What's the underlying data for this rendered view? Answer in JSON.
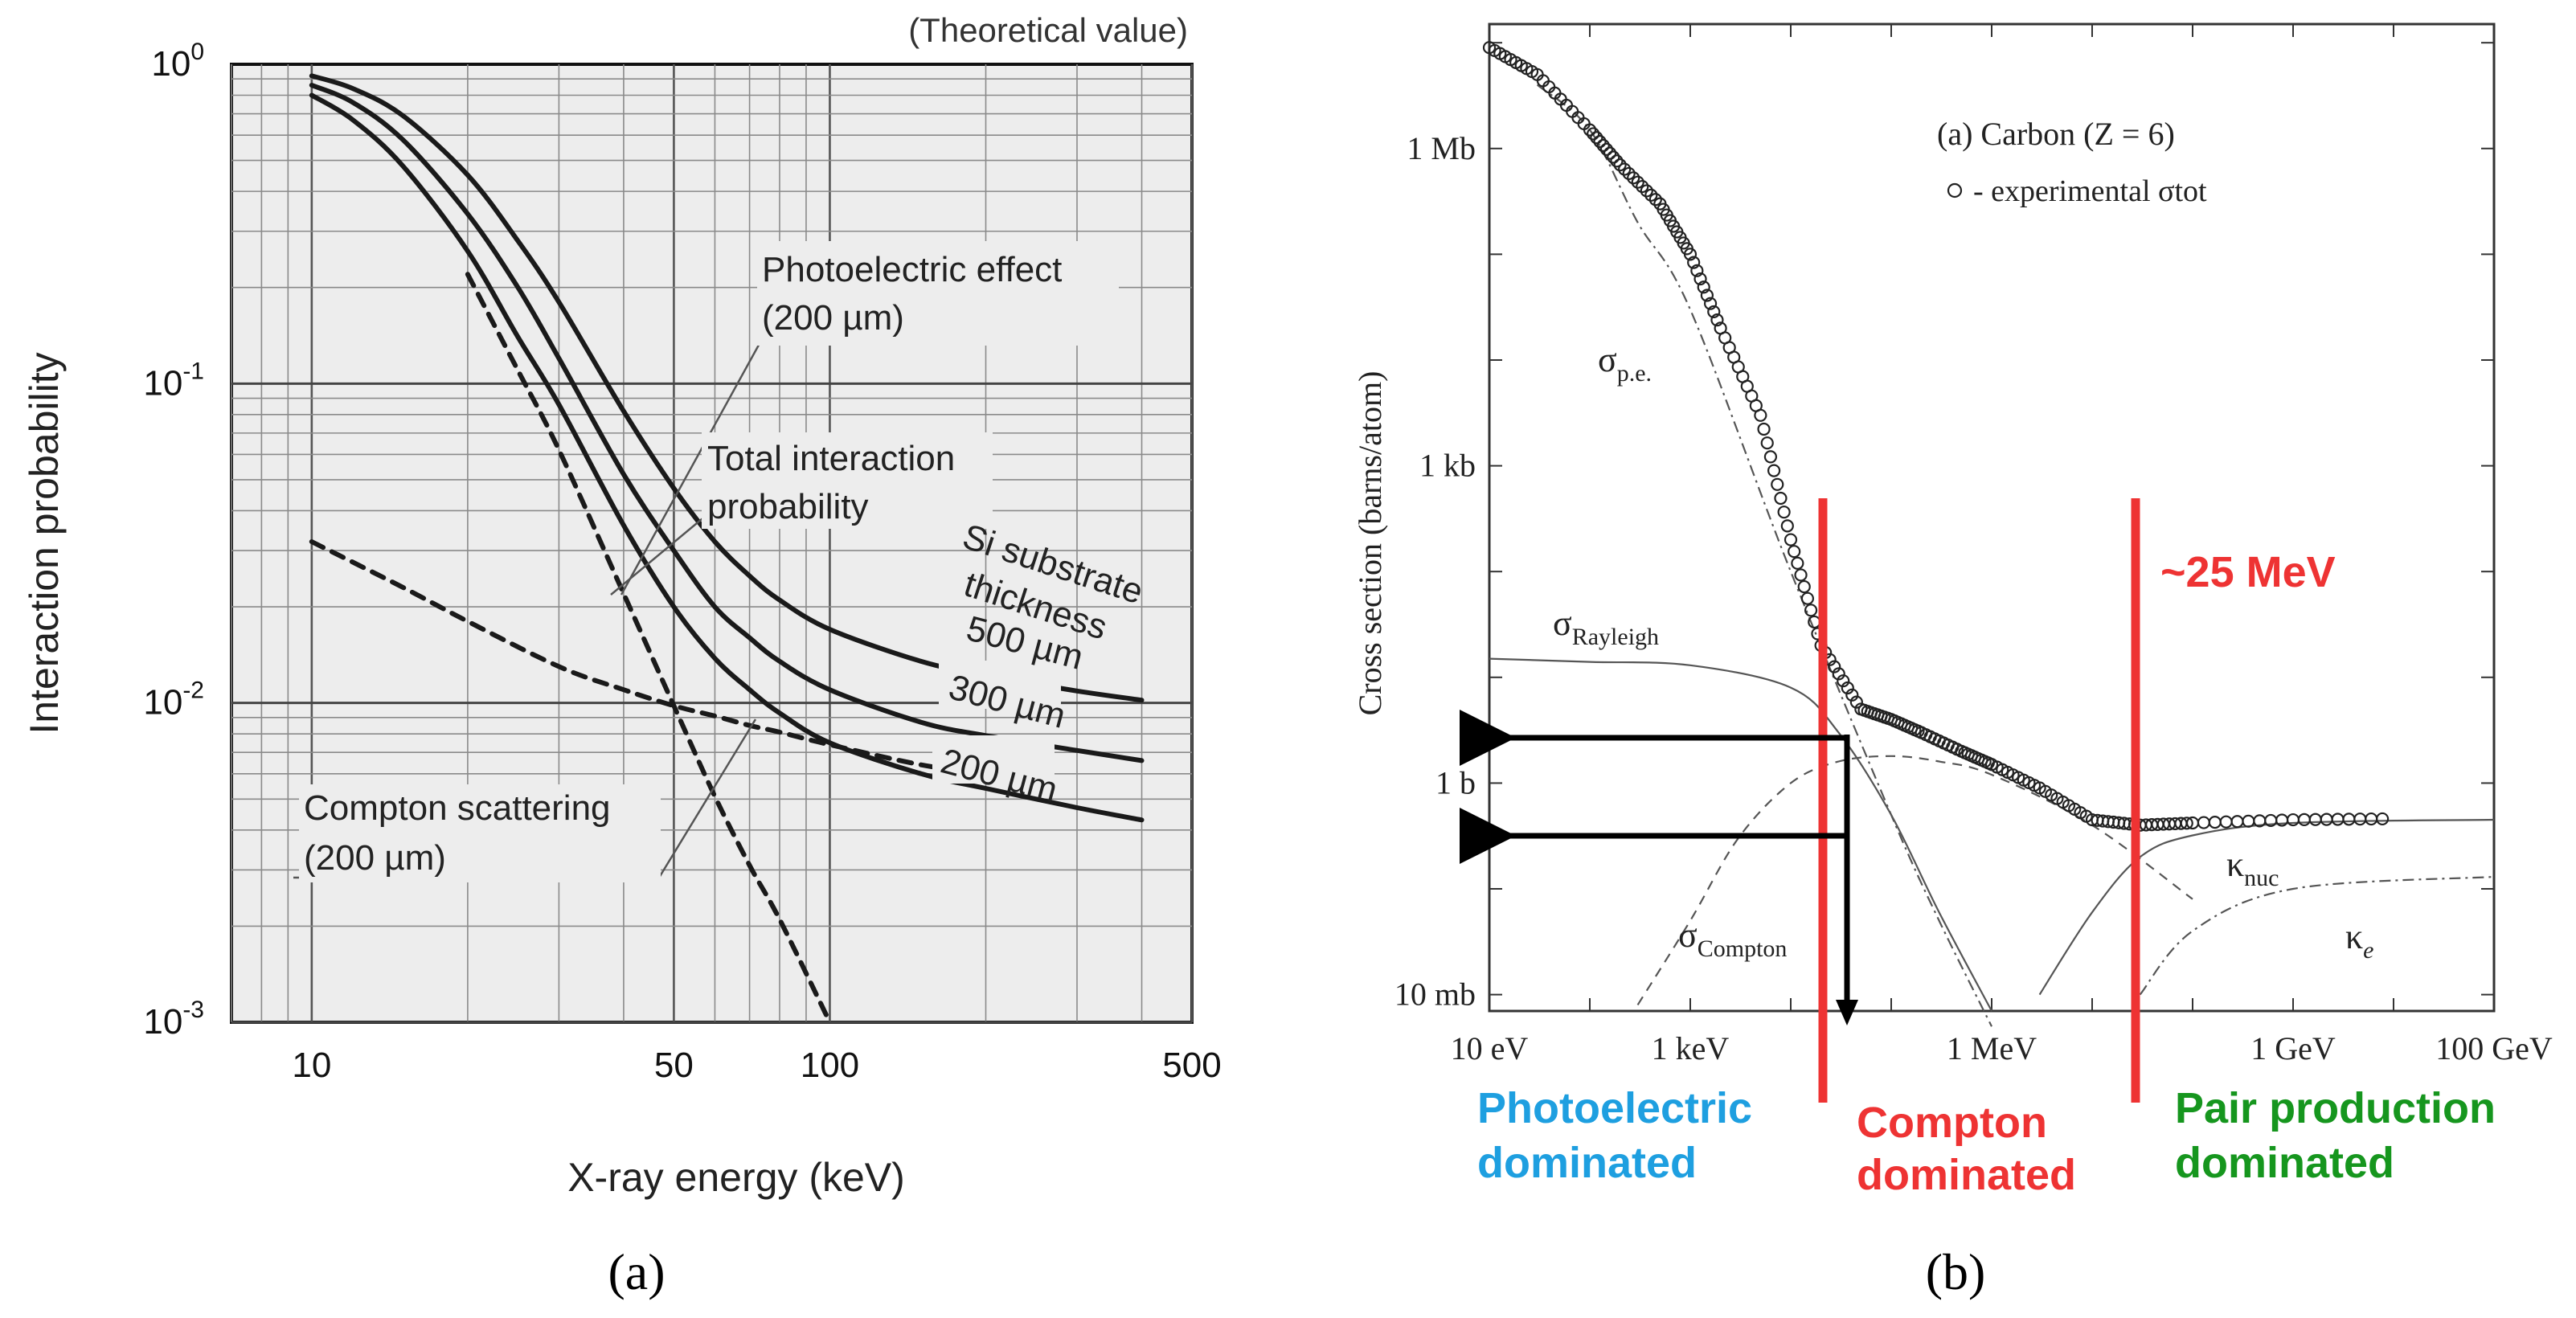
{
  "figure_labels": {
    "a": "(a)",
    "b": "(b)"
  },
  "colors": {
    "curve": "#1a1a1a",
    "grid": "#8a8a8a",
    "panel_bg": "#ededed",
    "red": "#ee3333",
    "blue": "#1e9fe0",
    "green": "#16961e",
    "thin": "#555555"
  },
  "chart_data": [
    {
      "type": "line",
      "panel": "a",
      "title": "(Theoretical value)",
      "xlabel": "X-ray energy (keV)",
      "ylabel": "Interaction probability",
      "xscale": "log",
      "yscale": "log",
      "xlim": [
        7,
        500
      ],
      "ylim": [
        0.001,
        1
      ],
      "grid": true,
      "x_ticks": [
        {
          "value": 10,
          "label": "10"
        },
        {
          "value": 50,
          "label": "50"
        },
        {
          "value": 100,
          "label": "100"
        },
        {
          "value": 500,
          "label": "500"
        }
      ],
      "y_ticks": [
        {
          "value": 1,
          "base": "10",
          "exp": "0"
        },
        {
          "value": 0.1,
          "base": "10",
          "exp": "-1"
        },
        {
          "value": 0.01,
          "base": "10",
          "exp": "-2"
        },
        {
          "value": 0.001,
          "base": "10",
          "exp": "-3"
        }
      ],
      "series": [
        {
          "name": "Total interaction probability 500 µm",
          "style": "solid",
          "x": [
            10,
            12,
            15,
            20,
            25,
            30,
            40,
            50,
            60,
            70,
            80,
            100,
            150,
            200,
            300,
            400
          ],
          "y": [
            0.92,
            0.84,
            0.69,
            0.45,
            0.28,
            0.18,
            0.082,
            0.047,
            0.032,
            0.025,
            0.021,
            0.017,
            0.0135,
            0.0122,
            0.0109,
            0.0102
          ]
        },
        {
          "name": "Total interaction probability 300 µm",
          "style": "solid",
          "x": [
            10,
            12,
            15,
            20,
            25,
            30,
            40,
            50,
            60,
            70,
            80,
            100,
            150,
            200,
            300,
            400
          ],
          "y": [
            0.86,
            0.76,
            0.58,
            0.34,
            0.2,
            0.12,
            0.052,
            0.03,
            0.02,
            0.016,
            0.0135,
            0.011,
            0.0087,
            0.0079,
            0.0071,
            0.0066
          ]
        },
        {
          "name": "Total interaction probability 200 µm",
          "style": "solid",
          "x": [
            10,
            12,
            15,
            20,
            25,
            30,
            40,
            50,
            60,
            70,
            80,
            100,
            150,
            200,
            300,
            400
          ],
          "y": [
            0.8,
            0.67,
            0.48,
            0.26,
            0.14,
            0.086,
            0.036,
            0.02,
            0.0138,
            0.011,
            0.0093,
            0.0075,
            0.006,
            0.0054,
            0.0047,
            0.0043
          ]
        },
        {
          "name": "Photoelectric effect (200 µm)",
          "style": "dashed",
          "x": [
            20,
            25,
            30,
            40,
            50,
            60,
            70,
            80,
            100
          ],
          "y": [
            0.22,
            0.11,
            0.062,
            0.022,
            0.0098,
            0.0051,
            0.0031,
            0.0021,
            0.001
          ]
        },
        {
          "name": "Compton scattering (200 µm)",
          "style": "dashed",
          "x": [
            10,
            15,
            20,
            30,
            40,
            50,
            60,
            70,
            80,
            100,
            150,
            200
          ],
          "y": [
            0.032,
            0.023,
            0.018,
            0.013,
            0.011,
            0.0098,
            0.0091,
            0.0085,
            0.0081,
            0.0074,
            0.0064,
            0.006
          ]
        }
      ],
      "annotations": [
        {
          "lines": [
            "Photoelectric effect",
            "(200 µm)"
          ]
        },
        {
          "lines": [
            "Total interaction",
            "probability"
          ]
        },
        {
          "lines": [
            "Si substrate",
            "thickness"
          ]
        },
        {
          "label": "500 µm"
        },
        {
          "label": "300 µm"
        },
        {
          "label": "200 µm"
        },
        {
          "lines": [
            "Compton scattering",
            "(200 µm)"
          ]
        }
      ]
    },
    {
      "type": "line",
      "panel": "b",
      "title": "(a) Carbon (Z = 6)",
      "legend": "- experimental σtot",
      "ylabel": "Cross section  (barns/atom)",
      "xscale": "log",
      "yscale": "log",
      "xlim_eV": [
        10,
        100000000000.0
      ],
      "ylim_barns": [
        0.007,
        15000000
      ],
      "x_ticks": [
        {
          "value": 10,
          "label": "10 eV"
        },
        {
          "value": 1000,
          "label": "1 keV"
        },
        {
          "value": 1000000,
          "label": "1 MeV"
        },
        {
          "value": 1000000000,
          "label": "1 GeV"
        },
        {
          "value": 100000000000,
          "label": "100 GeV"
        }
      ],
      "y_ticks": [
        {
          "value": 1000000,
          "label": "1 Mb"
        },
        {
          "value": 1000,
          "label": "1 kb"
        },
        {
          "value": 1,
          "label": "1 b"
        },
        {
          "value": 0.01,
          "label": "10 mb"
        }
      ],
      "series": [
        {
          "name": "experimental σtot",
          "style": "circles",
          "x": [
            10,
            30,
            100,
            200,
            500,
            1000,
            2000,
            5000,
            10000,
            20000,
            50000,
            100000,
            200000,
            500000,
            1000000,
            3000000,
            10000000,
            30000000,
            100000000,
            1000000000,
            10000000000
          ],
          "y": [
            9000000,
            5000000,
            1500000,
            700000,
            300000,
            100000,
            20000,
            3000,
            200,
            20,
            5,
            4,
            3,
            2,
            1.5,
            0.9,
            0.45,
            0.4,
            0.42,
            0.45,
            0.46
          ]
        },
        {
          "name": "σp.e.",
          "style": "dashdot",
          "x": [
            30,
            100,
            300,
            1000,
            10000,
            100000,
            300000,
            1000000
          ],
          "y": [
            4000000,
            1500000,
            200000,
            30000,
            100,
            0.5,
            0.05,
            0.005
          ]
        },
        {
          "name": "σRayleigh",
          "style": "solid",
          "x": [
            10,
            100,
            1000,
            10000,
            30000,
            100000,
            300000,
            1000000
          ],
          "y": [
            15,
            14,
            13,
            8,
            3,
            0.5,
            0.06,
            0.007
          ]
        },
        {
          "name": "σCompton",
          "style": "dashed",
          "x": [
            300,
            1000,
            3000,
            10000,
            30000,
            100000,
            300000,
            1000000,
            10000000,
            100000000
          ],
          "y": [
            0.008,
            0.05,
            0.3,
            1,
            1.6,
            1.8,
            1.6,
            1.2,
            0.4,
            0.08
          ]
        },
        {
          "name": "κnuc",
          "style": "solid",
          "x": [
            3000000,
            10000000,
            30000000,
            100000000,
            1000000000,
            100000000000
          ],
          "y": [
            0.01,
            0.06,
            0.2,
            0.32,
            0.42,
            0.45
          ]
        },
        {
          "name": "κe",
          "style": "dashdot",
          "x": [
            30000000,
            100000000,
            1000000000,
            100000000000
          ],
          "y": [
            0.01,
            0.04,
            0.1,
            0.13
          ]
        }
      ],
      "markers": [
        {
          "label": "~25 MeV",
          "color": "red"
        }
      ],
      "regions": [
        {
          "lines": [
            "Photoelectric",
            "dominated"
          ],
          "color": "blue"
        },
        {
          "lines": [
            "Compton",
            "dominated"
          ],
          "color": "red"
        },
        {
          "lines": [
            "Pair production",
            "dominated"
          ],
          "color": "green"
        }
      ]
    }
  ]
}
